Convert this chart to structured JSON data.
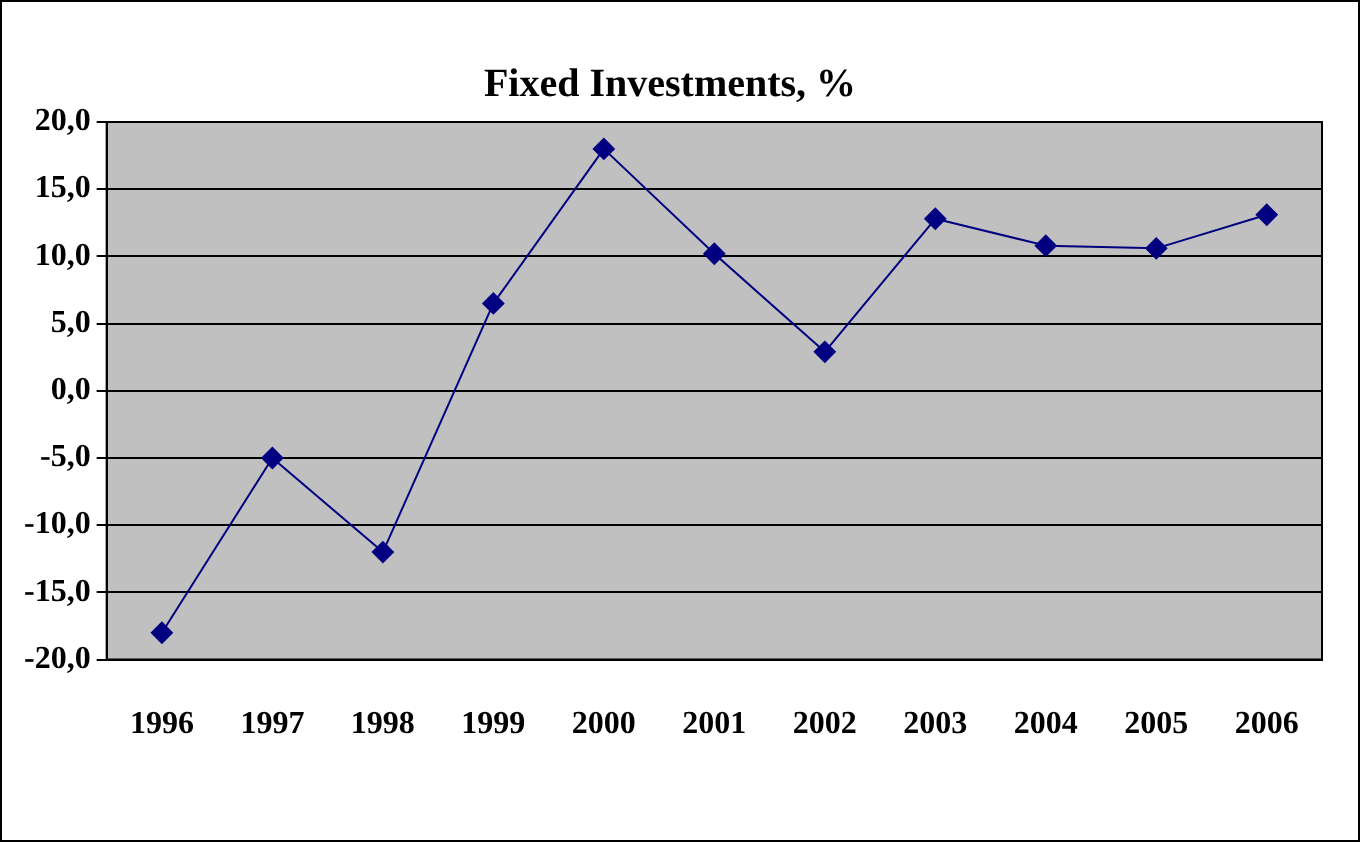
{
  "chart_data": {
    "type": "line",
    "title": "Fixed Investments, %",
    "categories": [
      "1996",
      "1997",
      "1998",
      "1999",
      "2000",
      "2001",
      "2002",
      "2003",
      "2004",
      "2005",
      "2006"
    ],
    "series": [
      {
        "color": "#000080",
        "values": [
          -18,
          -5,
          -12,
          6.5,
          18,
          10.2,
          2.9,
          12.8,
          10.8,
          10.6,
          13.1
        ]
      }
    ],
    "ylim": [
      -20,
      20
    ],
    "yticks": [
      {
        "value": -20,
        "label": "-20,0"
      },
      {
        "value": -15,
        "label": "-15,0"
      },
      {
        "value": -10,
        "label": "-10,0"
      },
      {
        "value": -5,
        "label": "-5,0"
      },
      {
        "value": 0,
        "label": "0,0"
      },
      {
        "value": 5,
        "label": "5,0"
      },
      {
        "value": 10,
        "label": "10,0"
      },
      {
        "value": 15,
        "label": "15,0"
      },
      {
        "value": 20,
        "label": "20,0"
      }
    ],
    "grid": "y",
    "legend": false,
    "marker": "diamond",
    "line_style": "solid"
  }
}
